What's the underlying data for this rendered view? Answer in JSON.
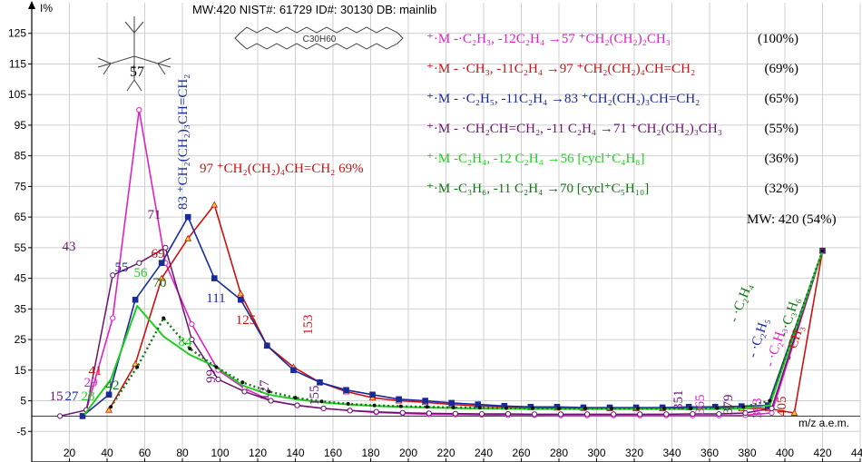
{
  "chart_data": {
    "type": "line",
    "header": "MW:420 NIST#: 61729 ID#: 30130 DB: mainlib",
    "formula": "C30H60",
    "y_axis_label": "I%",
    "x_axis_label": "m/z a.e.m.",
    "xlim": [
      0,
      440
    ],
    "ylim": [
      -15,
      135
    ],
    "x_ticks": [
      20,
      40,
      60,
      80,
      100,
      120,
      140,
      160,
      180,
      200,
      220,
      240,
      260,
      280,
      300,
      320,
      340,
      360,
      380,
      400,
      420,
      440
    ],
    "y_ticks": [
      -5,
      5,
      15,
      25,
      35,
      45,
      55,
      65,
      75,
      85,
      95,
      105,
      115,
      125
    ],
    "grid": true,
    "series": [
      {
        "color": "#e020c8",
        "points": [
          [
            29,
            2
          ],
          [
            43,
            32
          ],
          [
            57,
            100
          ],
          [
            71,
            50
          ],
          [
            85,
            30
          ],
          [
            99,
            15
          ],
          [
            113,
            9
          ],
          [
            127,
            5
          ],
          [
            141,
            3.5
          ],
          [
            155,
            2.5
          ],
          [
            169,
            1.8
          ],
          [
            183,
            1.2
          ],
          [
            197,
            0.9
          ],
          [
            211,
            0.6
          ],
          [
            225,
            0.5
          ],
          [
            239,
            0.4
          ],
          [
            253,
            0.3
          ],
          [
            267,
            0.3
          ],
          [
            281,
            0.2
          ],
          [
            295,
            0.2
          ],
          [
            309,
            0.2
          ],
          [
            323,
            0.2
          ],
          [
            337,
            0.2
          ],
          [
            351,
            0.2
          ],
          [
            365,
            0.2
          ],
          [
            379,
            0.3
          ],
          [
            393,
            1
          ],
          [
            420,
            54
          ]
        ]
      },
      {
        "color": "#cc1111",
        "points": [
          [
            41,
            2
          ],
          [
            55,
            17
          ],
          [
            69,
            45
          ],
          [
            83,
            58
          ],
          [
            97,
            69
          ],
          [
            111,
            40
          ],
          [
            125,
            23
          ],
          [
            139,
            16
          ],
          [
            153,
            11
          ],
          [
            167,
            8
          ],
          [
            181,
            6
          ],
          [
            195,
            5
          ],
          [
            209,
            4.5
          ],
          [
            223,
            3.8
          ],
          [
            237,
            3.3
          ],
          [
            251,
            3
          ],
          [
            265,
            2.8
          ],
          [
            279,
            2.7
          ],
          [
            293,
            2.6
          ],
          [
            307,
            2.5
          ],
          [
            321,
            2.5
          ],
          [
            335,
            2.5
          ],
          [
            349,
            2.8
          ],
          [
            363,
            3
          ],
          [
            377,
            2.5
          ],
          [
            391,
            2.5
          ],
          [
            405,
            1
          ],
          [
            420,
            54
          ]
        ]
      },
      {
        "color": "#1a2a9a",
        "points": [
          [
            27,
            0
          ],
          [
            41,
            7
          ],
          [
            55,
            38
          ],
          [
            69,
            50
          ],
          [
            83,
            65
          ],
          [
            97,
            45
          ],
          [
            111,
            38
          ],
          [
            125,
            23
          ],
          [
            139,
            15
          ],
          [
            153,
            11
          ],
          [
            167,
            8.5
          ],
          [
            181,
            7
          ],
          [
            195,
            5.5
          ],
          [
            209,
            5
          ],
          [
            223,
            4.3
          ],
          [
            237,
            3.8
          ],
          [
            251,
            3.3
          ],
          [
            265,
            3
          ],
          [
            279,
            3
          ],
          [
            293,
            2.8
          ],
          [
            307,
            2.8
          ],
          [
            321,
            2.8
          ],
          [
            335,
            2.8
          ],
          [
            349,
            3
          ],
          [
            363,
            3
          ],
          [
            377,
            3.2
          ],
          [
            391,
            3.5
          ],
          [
            420,
            54
          ]
        ]
      },
      {
        "color": "#6a1470",
        "points": [
          [
            15,
            0
          ],
          [
            29,
            2
          ],
          [
            43,
            46
          ],
          [
            57,
            50
          ],
          [
            71,
            55
          ],
          [
            85,
            25
          ],
          [
            99,
            12
          ],
          [
            113,
            8
          ],
          [
            127,
            5
          ],
          [
            141,
            3.5
          ],
          [
            155,
            2.5
          ],
          [
            169,
            1.8
          ],
          [
            183,
            1.4
          ],
          [
            197,
            1.1
          ],
          [
            211,
            0.9
          ],
          [
            225,
            0.8
          ],
          [
            239,
            0.7
          ],
          [
            253,
            0.7
          ],
          [
            267,
            0.6
          ],
          [
            281,
            0.6
          ],
          [
            295,
            0.6
          ],
          [
            309,
            0.6
          ],
          [
            323,
            0.6
          ],
          [
            337,
            0.6
          ],
          [
            351,
            0.7
          ],
          [
            365,
            0.7
          ],
          [
            379,
            1
          ],
          [
            393,
            2.5
          ],
          [
            420,
            54
          ]
        ]
      },
      {
        "color": "#22cc22",
        "points": [
          [
            28,
            0.5
          ],
          [
            42,
            12
          ],
          [
            56,
            36
          ],
          [
            70,
            26
          ],
          [
            84,
            20
          ],
          [
            98,
            16
          ],
          [
            112,
            10
          ],
          [
            126,
            7
          ],
          [
            140,
            5.5
          ],
          [
            154,
            4.5
          ],
          [
            168,
            3.8
          ],
          [
            182,
            3.3
          ],
          [
            196,
            3
          ],
          [
            210,
            2.8
          ],
          [
            224,
            2.6
          ],
          [
            238,
            2.5
          ],
          [
            252,
            2.4
          ],
          [
            266,
            2.3
          ],
          [
            280,
            2.3
          ],
          [
            294,
            2.3
          ],
          [
            308,
            2.3
          ],
          [
            322,
            2.3
          ],
          [
            336,
            2.3
          ],
          [
            350,
            2.3
          ],
          [
            364,
            2.3
          ],
          [
            378,
            2.5
          ],
          [
            392,
            3.5
          ],
          [
            420,
            54
          ]
        ]
      },
      {
        "color": "#117711",
        "points": [
          [
            42,
            3
          ],
          [
            56,
            16
          ],
          [
            70,
            32
          ],
          [
            84,
            22
          ],
          [
            98,
            16
          ],
          [
            112,
            11
          ],
          [
            126,
            8
          ],
          [
            140,
            6
          ],
          [
            154,
            4.8
          ],
          [
            168,
            4
          ],
          [
            182,
            3.5
          ],
          [
            196,
            3.2
          ],
          [
            210,
            3
          ],
          [
            224,
            2.8
          ],
          [
            238,
            2.7
          ],
          [
            252,
            2.6
          ],
          [
            266,
            2.6
          ],
          [
            280,
            2.5
          ],
          [
            294,
            2.5
          ],
          [
            308,
            2.5
          ],
          [
            322,
            2.5
          ],
          [
            336,
            2.5
          ],
          [
            350,
            2.5
          ],
          [
            364,
            2.6
          ],
          [
            378,
            3
          ],
          [
            392,
            5
          ],
          [
            420,
            54
          ]
        ]
      }
    ],
    "peak_labels": [
      {
        "text": "15",
        "color": "#6a1470"
      },
      {
        "text": "27",
        "color": "#1a2a9a"
      },
      {
        "text": "28",
        "color": "#22cc22"
      },
      {
        "text": "29",
        "color": "#e020c8"
      },
      {
        "text": "41",
        "color": "#cc1111"
      },
      {
        "text": "42",
        "color": "#117711"
      },
      {
        "text": "43",
        "color": "#6a1470"
      },
      {
        "text": "55",
        "color": "#1a2a9a"
      },
      {
        "text": "56",
        "color": "#22cc22"
      },
      {
        "text": "69",
        "color": "#cc1111"
      },
      {
        "text": "70",
        "color": "#117711"
      },
      {
        "text": "71",
        "color": "#6a1470"
      },
      {
        "text": "84",
        "color": "#22cc22"
      },
      {
        "text": "99",
        "color": "#6a1470"
      },
      {
        "text": "111",
        "color": "#1a2a9a"
      },
      {
        "text": "125",
        "color": "#cc1111"
      },
      {
        "text": "127",
        "color": "#6a1470"
      },
      {
        "text": "153",
        "color": "#cc1111"
      },
      {
        "text": "155",
        "color": "#6a1470"
      },
      {
        "text": "351",
        "color": "#6a1470"
      },
      {
        "text": "365",
        "color": "#e020c8"
      },
      {
        "text": "379",
        "color": "#6a1470"
      },
      {
        "text": "393",
        "color": "#e020c8"
      },
      {
        "text": "405",
        "color": "#cc1111"
      },
      {
        "text": "57",
        "color": "#000000"
      },
      {
        "text": "83 ⁺CH₂(CH₂)₃CH=CH₂",
        "color": "#1a2a9a"
      },
      {
        "text": "97 ⁺CH₂(CH₂)₄CH=CH₂ 69%",
        "color": "#cc1111"
      },
      {
        "text": "MW: 420 (54%)",
        "color": "#000000"
      }
    ],
    "loss_labels": [
      {
        "text": "- ·C₂H₄",
        "color": "#117711"
      },
      {
        "text": "- ·C₂H₅",
        "color": "#1a2a9a"
      },
      {
        "text": "- ·C₂H₃",
        "color": "#e020c8"
      },
      {
        "text": "- ·C₃H₆",
        "color": "#117711"
      },
      {
        "text": "- ·CH₃",
        "color": "#cc1111"
      }
    ],
    "legend": [
      {
        "color": "#e020c8",
        "prefix": "⁺·M -·C₂H₃,  -12C₂H₄ →57 ⁺CH₂(CH₂)₂CH₃",
        "percent": "(100%)"
      },
      {
        "color": "#cc1111",
        "prefix": "⁺·M - ·CH₃,  -11C₂H₄ →97 ⁺CH₂(CH₂)₄CH=CH₂",
        "percent": "(69%)"
      },
      {
        "color": "#1a2a9a",
        "prefix": "⁺·M - ·C₂H₅,  -11C₂H₄ →83 ⁺CH₂(CH₂)₃CH=CH₂",
        "percent": "(65%)"
      },
      {
        "color": "#6a1470",
        "prefix": "⁺·M - ·CH₂CH=CH₂, -11 C₂H₄ →71 ⁺CH₂(CH₂)₃CH₃",
        "percent": "(55%)"
      },
      {
        "color": "#22cc22",
        "prefix": "⁺·M -C₂H₄,  -12 C₂H₄ →56 [cycl⁺C₄H₈]",
        "percent": "(36%)"
      },
      {
        "color": "#117711",
        "prefix": "⁺·M -C₃H₆,  -11 C₂H₄ →70 [cycl⁺C₅H₁₀]",
        "percent": "(32%)"
      }
    ]
  }
}
